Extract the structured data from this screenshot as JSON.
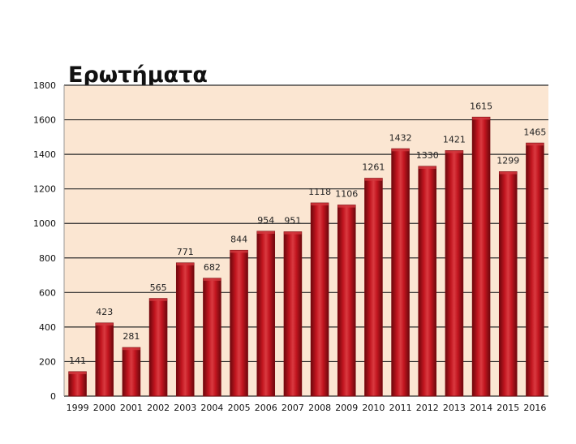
{
  "colors": {
    "plot_background": "#fbe6d2",
    "bar_fill": "#b0111b",
    "bar_dark": "#7a0a10",
    "bar_highlight": "#d23a3e",
    "gridline": "#2b2b2b"
  },
  "chart_data": {
    "type": "bar",
    "title": "Ερωτήματα",
    "xlabel": "",
    "ylabel": "",
    "ylim": [
      0,
      1800
    ],
    "yticks": [
      0,
      200,
      400,
      600,
      800,
      1000,
      1200,
      1400,
      1600,
      1800
    ],
    "grid": true,
    "categories": [
      "1999",
      "2000",
      "2001",
      "2002",
      "2003",
      "2004",
      "2005",
      "2006",
      "2007",
      "2008",
      "2009",
      "2010",
      "2011",
      "2012",
      "2013",
      "2014",
      "2015",
      "2016"
    ],
    "values": [
      141,
      423,
      281,
      565,
      771,
      682,
      844,
      954,
      951,
      1118,
      1106,
      1261,
      1432,
      1330,
      1421,
      1615,
      1299,
      1465
    ]
  }
}
